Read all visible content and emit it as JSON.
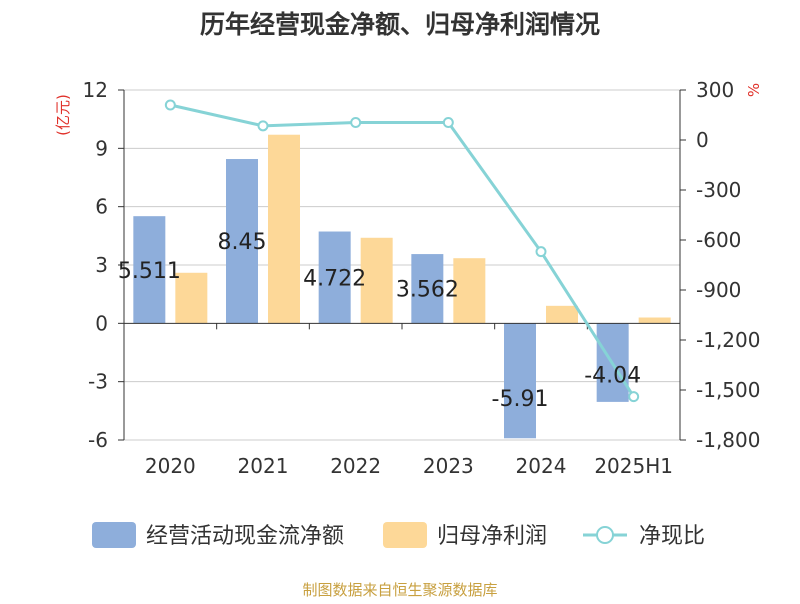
{
  "chart_data": {
    "type": "bar",
    "title": "历年经营现金净额、归母净利润情况",
    "ylabel": "(亿元)",
    "y2label": "%",
    "categories": [
      "2020",
      "2021",
      "2022",
      "2023",
      "2024",
      "2025H1"
    ],
    "ylim": [
      -6,
      12
    ],
    "yticks": [
      -6,
      -3,
      0,
      3,
      6,
      9,
      12
    ],
    "y2lim": [
      -1800,
      300
    ],
    "y2ticks": [
      300,
      0,
      -300,
      -600,
      -900,
      -1200,
      -1500,
      -1800
    ],
    "y2ticklabels": [
      "300",
      "0",
      "-300",
      "-600",
      "-900",
      "-1,200",
      "-1,500",
      "-1,800"
    ],
    "series": [
      {
        "name": "经营活动现金流净额",
        "type": "bar",
        "axis": "left",
        "color": "#8eaedb",
        "values": [
          5.511,
          8.45,
          4.722,
          3.562,
          -5.91,
          -4.04
        ],
        "labels": [
          "5.511",
          "8.45",
          "4.722",
          "3.562",
          "-5.91",
          "-4.04"
        ]
      },
      {
        "name": "归母净利润",
        "type": "bar",
        "axis": "left",
        "color": "#fdd898",
        "values": [
          2.6,
          9.7,
          4.4,
          3.35,
          0.9,
          0.3
        ]
      },
      {
        "name": "净现比",
        "type": "line",
        "axis": "right",
        "color": "#86d3d6",
        "values": [
          210,
          85,
          105,
          105,
          -670,
          -1540
        ]
      }
    ],
    "legend": {
      "position": "bottom"
    },
    "grid": true
  },
  "source_text": "制图数据来自恒生聚源数据库",
  "colors": {
    "title": "#333333",
    "axis_label": "#e0312a",
    "tick": "#333333",
    "gridline": "#cccccc",
    "source": "#c8a040"
  }
}
